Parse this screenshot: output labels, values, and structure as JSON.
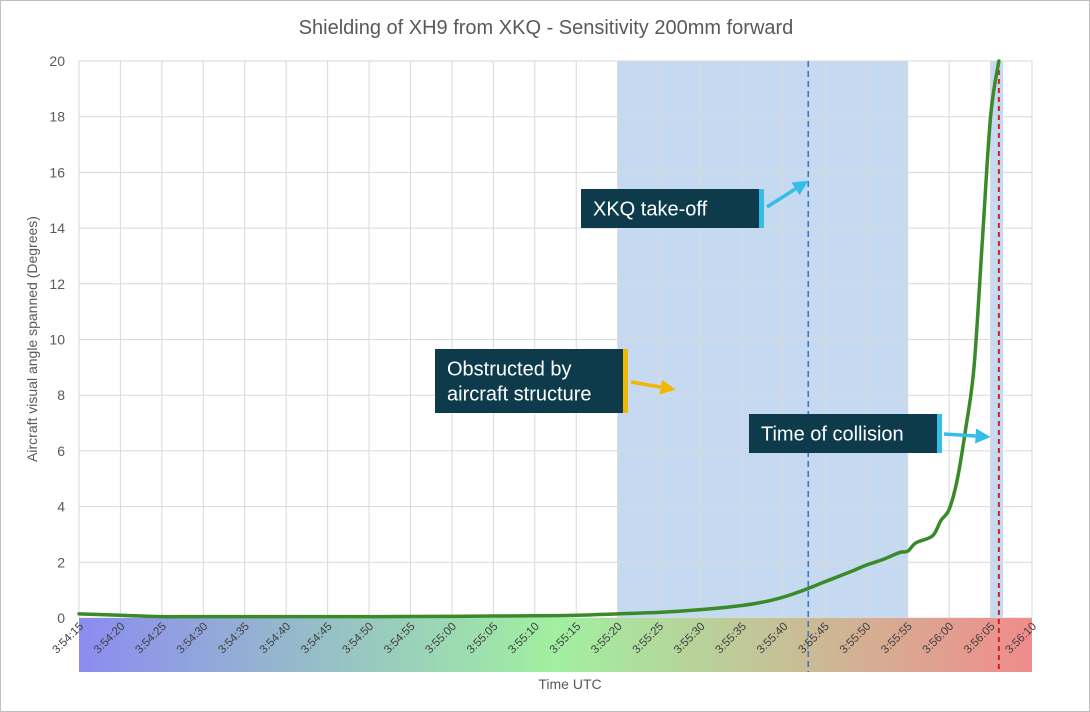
{
  "chart_data": {
    "type": "line",
    "title": "Shielding of XH9 from XKQ - Sensitivity 200mm forward",
    "xlabel": "Time UTC",
    "ylabel": "Aircraft visual angle spanned (Degrees)",
    "ylim": [
      0,
      20
    ],
    "y_ticks": [
      0,
      2,
      4,
      6,
      8,
      10,
      12,
      14,
      16,
      18,
      20
    ],
    "xlim": [
      "3:54:15",
      "3:56:10"
    ],
    "x_ticks": [
      "3:54:15",
      "3:54:20",
      "3:54:25",
      "3:54:30",
      "3:54:35",
      "3:54:40",
      "3:54:45",
      "3:54:50",
      "3:54:55",
      "3:55:00",
      "3:55:05",
      "3:55:10",
      "3:55:15",
      "3:55:20",
      "3:55:25",
      "3:55:30",
      "3:55:35",
      "3:55:40",
      "3:55:45",
      "3:55:50",
      "3:55:55",
      "3:56:00",
      "3:56:05",
      "3:56:10"
    ],
    "grid": true,
    "series": [
      {
        "color": "#3a8a2a",
        "x": [
          "3:54:15",
          "3:54:20",
          "3:54:25",
          "3:54:30",
          "3:54:40",
          "3:54:50",
          "3:55:00",
          "3:55:05",
          "3:55:10",
          "3:55:15",
          "3:55:20",
          "3:55:25",
          "3:55:30",
          "3:55:35",
          "3:55:38",
          "3:55:40",
          "3:55:42",
          "3:55:45",
          "3:55:48",
          "3:55:50",
          "3:55:52",
          "3:55:54",
          "3:55:55",
          "3:55:56",
          "3:55:58",
          "3:55:59",
          "3:56:00",
          "3:56:01",
          "3:56:02",
          "3:56:03",
          "3:56:04",
          "3:56:05",
          "3:56:06"
        ],
        "y": [
          0.15,
          0.1,
          0.05,
          0.05,
          0.05,
          0.05,
          0.06,
          0.07,
          0.08,
          0.1,
          0.15,
          0.2,
          0.3,
          0.45,
          0.6,
          0.75,
          0.95,
          1.3,
          1.65,
          1.9,
          2.1,
          2.35,
          2.4,
          2.7,
          2.95,
          3.5,
          3.9,
          5.0,
          6.8,
          9.0,
          13.5,
          18.0,
          20.0
        ]
      }
    ],
    "shaded_regions": [
      {
        "start": "3:55:20",
        "end": "3:55:55",
        "color": "#c5daf0"
      },
      {
        "start": "3:56:05",
        "end": "3:56:06.5",
        "color": "#c5daf0"
      }
    ],
    "vertical_lines": [
      {
        "x": "3:55:43",
        "style": "dashed",
        "color": "#3a78c8"
      },
      {
        "x": "3:56:06",
        "style": "dashed",
        "color": "#d21f1f"
      }
    ],
    "annotations": [
      {
        "text": "XKQ take-off",
        "color": "#0d3b4c",
        "accent": "#33bde8",
        "target": [
          "3:55:43",
          15.7
        ]
      },
      {
        "text": "Obstructed by aircraft structure",
        "lines": [
          "Obstructed by",
          "aircraft structure"
        ],
        "color": "#0d3b4c",
        "accent": "#f2b705",
        "target": [
          "3:55:27",
          8.2
        ]
      },
      {
        "text": "Time of collision",
        "color": "#0d3b4c",
        "accent": "#33bde8",
        "target": [
          "3:56:05",
          6.5
        ]
      }
    ],
    "x_axis_band": {
      "colors": [
        "#8c8cf0",
        "#a0f0a0",
        "#f08c8c"
      ]
    }
  }
}
